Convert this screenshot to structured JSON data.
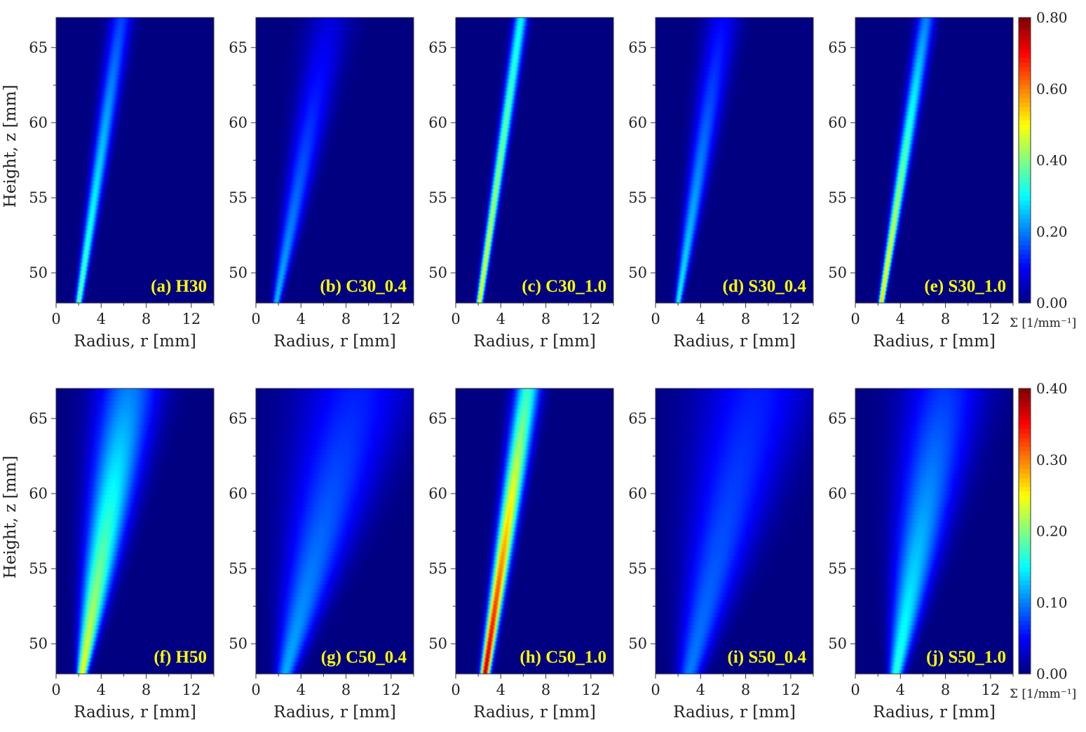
{
  "chart_data": {
    "type": "heatmap",
    "xlabel": "Radius, r [mm]",
    "ylabel": "Height, z [mm]",
    "xlim": [
      0,
      14
    ],
    "ylim": [
      48,
      67
    ],
    "xticks": [
      "0",
      "4",
      "8",
      "12"
    ],
    "yticks": [
      "50",
      "55",
      "60",
      "65"
    ],
    "colormap": "jet",
    "grid": false,
    "rows": [
      {
        "colorbar": {
          "label": "Σ [1/mm⁻¹]",
          "range": [
            0,
            0.8
          ],
          "ticks": [
            "0.00",
            "0.20",
            "0.40",
            "0.60",
            "0.80"
          ]
        },
        "panels": [
          {
            "label": "(a) H30",
            "plume": {
              "r_center": [
                2.0,
                5.8
              ],
              "half_width": [
                0.3,
                1.0
              ],
              "peak": [
                0.38,
                0.15
              ]
            }
          },
          {
            "label": "(b) C30_0.4",
            "plume": {
              "r_center": [
                1.8,
                6.6
              ],
              "half_width": [
                0.35,
                2.0
              ],
              "peak": [
                0.25,
                0.07
              ]
            }
          },
          {
            "label": "(c) C30_1.0",
            "plume": {
              "r_center": [
                2.1,
                5.8
              ],
              "half_width": [
                0.28,
                0.6
              ],
              "peak": [
                0.5,
                0.3
              ]
            }
          },
          {
            "label": "(d) S30_0.4",
            "plume": {
              "r_center": [
                2.0,
                6.0
              ],
              "half_width": [
                0.3,
                1.5
              ],
              "peak": [
                0.3,
                0.1
              ]
            }
          },
          {
            "label": "(e) S30_1.0",
            "plume": {
              "r_center": [
                2.3,
                6.3
              ],
              "half_width": [
                0.25,
                0.8
              ],
              "peak": [
                0.55,
                0.2
              ]
            }
          }
        ]
      },
      {
        "colorbar": {
          "label": "Σ [1/mm⁻¹]",
          "range": [
            0,
            0.4
          ],
          "ticks": [
            "0.00",
            "0.10",
            "0.20",
            "0.30",
            "0.40"
          ]
        },
        "panels": [
          {
            "label": "(f) H50",
            "plume": {
              "r_center": [
                2.3,
                6.5
              ],
              "half_width": [
                0.45,
                2.8
              ],
              "peak": [
                0.25,
                0.1
              ]
            }
          },
          {
            "label": "(g) C50_0.4",
            "plume": {
              "r_center": [
                2.6,
                9.0
              ],
              "half_width": [
                0.8,
                5.0
              ],
              "peak": [
                0.12,
                0.06
              ]
            }
          },
          {
            "label": "(h) C50_1.0",
            "plume": {
              "r_center": [
                2.6,
                6.4
              ],
              "half_width": [
                0.4,
                1.1
              ],
              "peak": [
                0.38,
                0.17
              ]
            }
          },
          {
            "label": "(i) S50_0.4",
            "plume": {
              "r_center": [
                3.0,
                9.0
              ],
              "half_width": [
                1.0,
                5.0
              ],
              "peak": [
                0.1,
                0.06
              ]
            }
          },
          {
            "label": "(j) S50_1.0",
            "plume": {
              "r_center": [
                3.6,
                8.0
              ],
              "half_width": [
                0.6,
                3.6
              ],
              "peak": [
                0.17,
                0.07
              ]
            }
          }
        ]
      }
    ]
  }
}
